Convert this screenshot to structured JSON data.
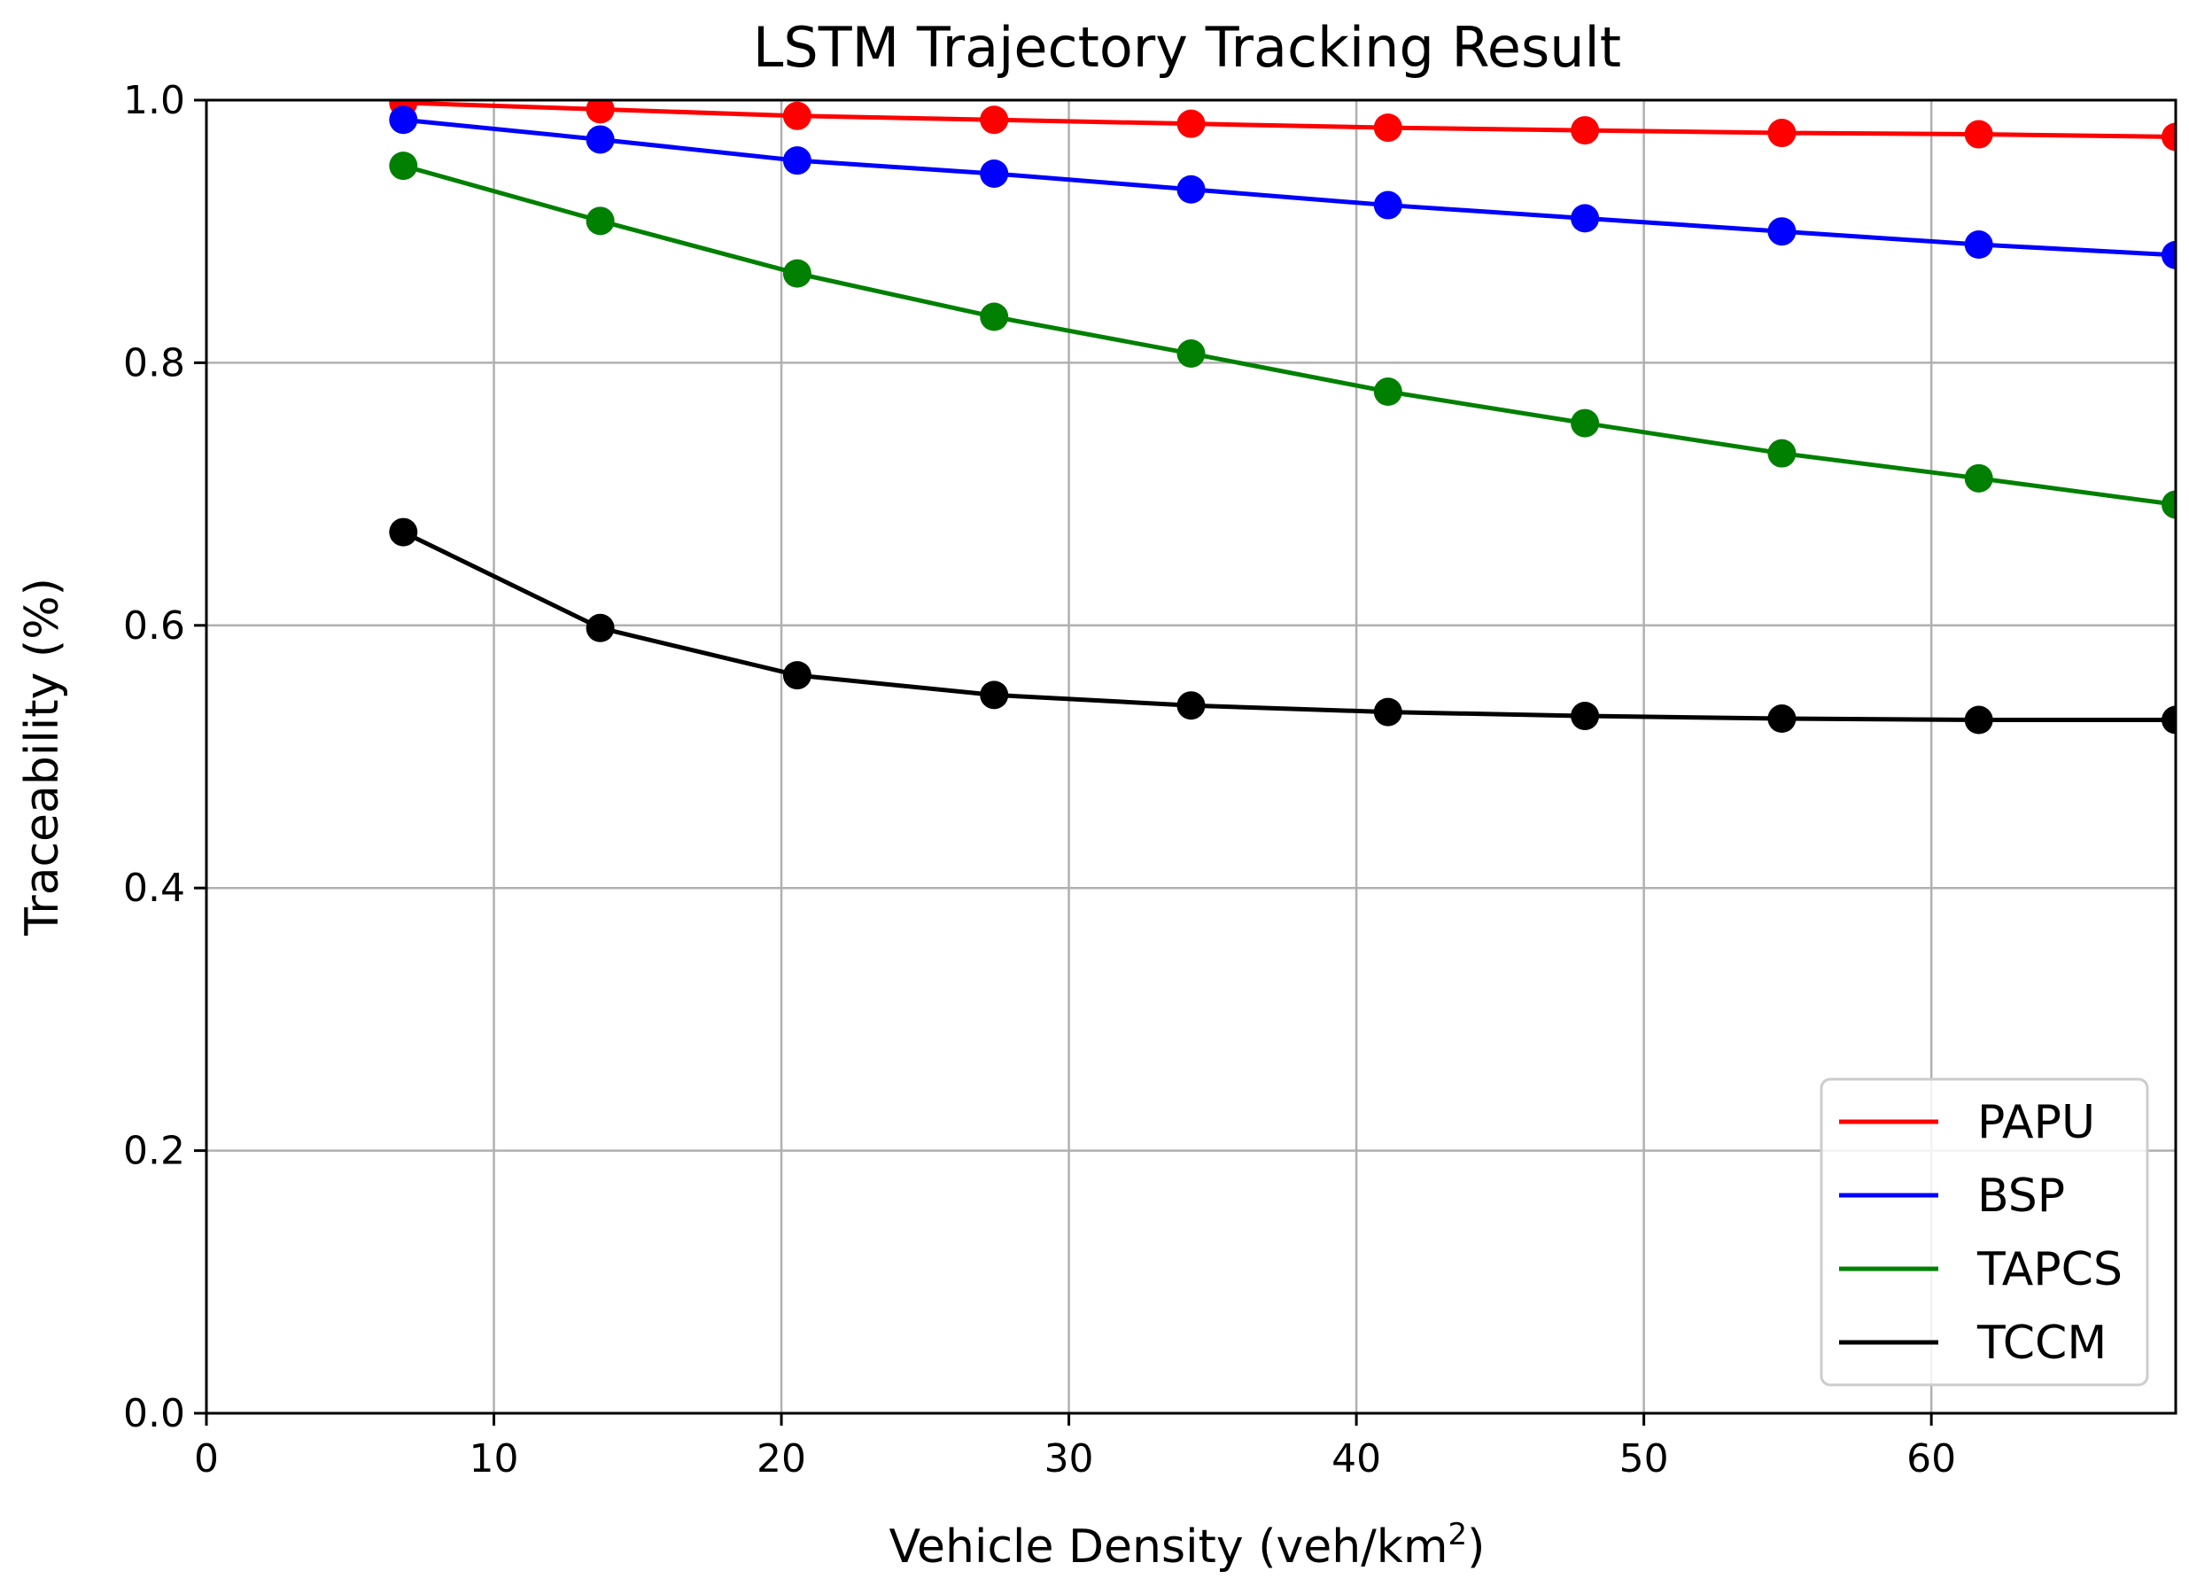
{
  "chart_data": {
    "type": "line",
    "title": "LSTM Trajectory Tracking Result",
    "xlabel": "Vehicle Density (veh/km",
    "xlabel_sup": "2",
    "xlabel_close": ")",
    "ylabel": "Traceability (%)",
    "xlim": [
      0,
      68.5
    ],
    "ylim": [
      0.0,
      1.0
    ],
    "xticks": [
      0,
      10,
      20,
      30,
      40,
      50,
      60
    ],
    "xtick_labels": [
      "0",
      "10",
      "20",
      "30",
      "40",
      "50",
      "60"
    ],
    "yticks": [
      0.0,
      0.2,
      0.4,
      0.6,
      0.8,
      1.0
    ],
    "ytick_labels": [
      "0.0",
      "0.2",
      "0.4",
      "0.6",
      "0.8",
      "1.0"
    ],
    "grid": true,
    "legend_position": "lower-right",
    "x": [
      6.85,
      13.7,
      20.55,
      27.4,
      34.25,
      41.1,
      47.95,
      54.8,
      61.65,
      68.5
    ],
    "series": [
      {
        "name": "PAPU",
        "color": "#ff0000",
        "values": [
          0.998,
          0.993,
          0.988,
          0.985,
          0.982,
          0.979,
          0.977,
          0.975,
          0.974,
          0.972
        ]
      },
      {
        "name": "BSP",
        "color": "#0000ff",
        "values": [
          0.985,
          0.97,
          0.954,
          0.944,
          0.932,
          0.92,
          0.91,
          0.9,
          0.89,
          0.882
        ]
      },
      {
        "name": "TAPCS",
        "color": "#008000",
        "values": [
          0.95,
          0.908,
          0.868,
          0.835,
          0.807,
          0.778,
          0.754,
          0.731,
          0.712,
          0.692
        ]
      },
      {
        "name": "TCCM",
        "color": "#000000",
        "values": [
          0.671,
          0.598,
          0.562,
          0.547,
          0.539,
          0.534,
          0.531,
          0.529,
          0.528,
          0.528
        ]
      }
    ]
  }
}
